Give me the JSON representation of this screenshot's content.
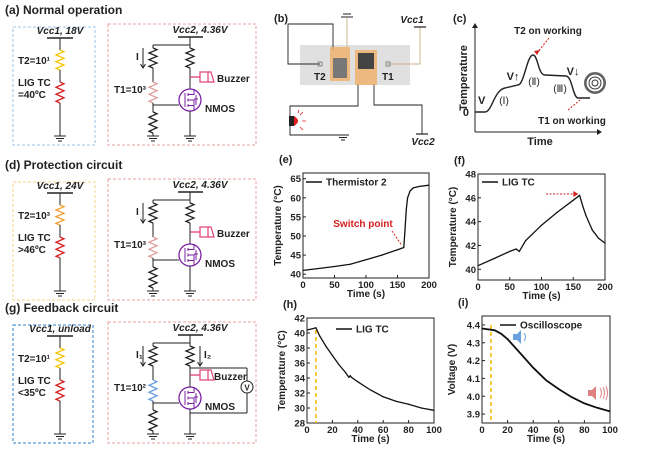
{
  "panels": {
    "a": {
      "title": "(a) Normal operation",
      "vcc1": "Vcc1, 18V",
      "t2": "T2=10¹",
      "lig1": "LIG TC",
      "lig2": "=40ºC",
      "vcc2": "Vcc2, 4.36V",
      "current": "I",
      "t1": "T1=10³",
      "buzzer": "Buzzer",
      "nmos": "NMOS",
      "left_box_color": "#9ec5ea",
      "t2_color": "#f5c400",
      "t1_color": "#e0a0a0"
    },
    "d": {
      "title": "(d) Protection circuit",
      "vcc1": "Vcc1, 24V",
      "t2": "T2=10³",
      "lig1": "LIG TC",
      "lig2": ">46ºC",
      "vcc2": "Vcc2, 4.36V",
      "current": "I",
      "t1": "T1=10³",
      "buzzer": "Buzzer",
      "nmos": "NMOS",
      "left_box_color": "#f4d58a",
      "t2_color": "#f0a030",
      "t1_color": "#e0a0a0"
    },
    "g": {
      "title": "(g) Feedback circuit",
      "vcc1": "Vcc1, unload",
      "t2": "T2=10¹",
      "lig1": "LIG TC",
      "lig2": "<35ºC",
      "vcc2": "Vcc2, 4.36V",
      "current": "I₁",
      "current2": "I₂",
      "t1": "T1=10²",
      "buzzer": "Buzzer",
      "nmos": "NMOS",
      "voltmeter": "V",
      "left_box_color": "#2e7fd6",
      "t2_color": "#f5c400",
      "t1_color": "#6aa0e0"
    },
    "b": {
      "title": "(b)",
      "vcc1": "Vcc1",
      "vcc2": "Vcc2",
      "t2": "T2",
      "t1": "T1"
    },
    "c": {
      "title": "(c)",
      "ylabel": "Temperature",
      "xlabel": "Time",
      "zero": "0",
      "v": "V",
      "v_up": "V↑",
      "v_down": "V↓",
      "stage1": "(Ⅰ)",
      "stage2": "(Ⅱ)",
      "stage3": "(Ⅲ)",
      "t2_note": "T2 on working",
      "t1_note": "T1 on working"
    }
  },
  "colors": {
    "right_box": "#e8a0a0",
    "lig_tc": "#d42020",
    "buzzer": "#e0407a",
    "nmos": "#7a1fa2",
    "annotation": "#d42020",
    "dashed_marker": "#f5b800",
    "speaker_quiet": "#6a9fe0",
    "speaker_loud": "#e08080"
  },
  "chart_data": [
    {
      "panel": "(e)",
      "type": "line",
      "xlabel": "Time (s)",
      "ylabel": "Temperature (°C)",
      "xlim": [
        0,
        200
      ],
      "ylim": [
        39,
        66.5
      ],
      "xticks": [
        0,
        50,
        100,
        150,
        200
      ],
      "yticks": [
        40,
        45,
        50,
        55,
        60,
        65
      ],
      "legend": "top-left",
      "series": [
        {
          "name": "Thermistor 2",
          "x": [
            0,
            25,
            50,
            75,
            100,
            125,
            150,
            160,
            162,
            164,
            166,
            170,
            175,
            185,
            200
          ],
          "y": [
            41,
            41.5,
            42,
            42.6,
            43.8,
            45,
            46.4,
            47,
            52,
            57,
            60,
            61.8,
            62.6,
            63,
            63.3
          ]
        }
      ],
      "annotations": [
        {
          "text": "Switch point",
          "x": 160,
          "y": 47
        }
      ]
    },
    {
      "panel": "(f)",
      "type": "line",
      "xlabel": "Time (s)",
      "ylabel": "Temperature (°C)",
      "xlim": [
        0,
        200
      ],
      "ylim": [
        39.1,
        48
      ],
      "xticks": [
        0,
        50,
        100,
        150,
        200
      ],
      "yticks": [
        40,
        42,
        44,
        46,
        48
      ],
      "legend": "top-left",
      "series": [
        {
          "name": "LIG TC",
          "x": [
            0,
            25,
            50,
            60,
            65,
            75,
            100,
            125,
            150,
            160,
            165,
            170,
            180,
            190,
            200
          ],
          "y": [
            40.3,
            40.9,
            41.5,
            41.7,
            41.5,
            42.4,
            43.7,
            44.8,
            45.8,
            46.2,
            45.3,
            44.5,
            43.3,
            42.6,
            42.2
          ]
        }
      ],
      "annotations": [
        {
          "text": "",
          "x": 158,
          "y": 46.2
        }
      ]
    },
    {
      "panel": "(h)",
      "type": "line",
      "xlabel": "Time (s)",
      "ylabel": "Temperature (°C)",
      "xlim": [
        0,
        100
      ],
      "ylim": [
        28,
        42
      ],
      "xticks": [
        0,
        20,
        40,
        60,
        80,
        100
      ],
      "yticks": [
        28,
        30,
        32,
        34,
        36,
        38,
        40,
        42
      ],
      "legend": "top-right",
      "marker_x": 7,
      "series": [
        {
          "name": "LIG TC",
          "x": [
            0,
            5,
            7,
            10,
            15,
            20,
            25,
            30,
            33,
            34,
            35,
            40,
            50,
            60,
            70,
            80,
            90,
            100
          ],
          "y": [
            40.4,
            40.6,
            40.7,
            39.6,
            38.2,
            37,
            35.8,
            34.8,
            34.1,
            34.3,
            34.1,
            33.5,
            32.4,
            31.5,
            30.9,
            30.5,
            30,
            29.7
          ]
        }
      ]
    },
    {
      "panel": "(i)",
      "type": "line",
      "xlabel": "Time (s)",
      "ylabel": "Voltage (V)",
      "xlim": [
        0,
        100
      ],
      "ylim": [
        3.85,
        4.45
      ],
      "xticks": [
        0,
        20,
        40,
        60,
        80,
        100
      ],
      "yticks": [
        3.9,
        4.0,
        4.1,
        4.2,
        4.3,
        4.4
      ],
      "legend": "top-right",
      "marker_x": 7,
      "series": [
        {
          "name": "Oscilloscope",
          "x": [
            0,
            10,
            15,
            20,
            30,
            40,
            50,
            60,
            70,
            80,
            90,
            100
          ],
          "y": [
            4.38,
            4.37,
            4.35,
            4.32,
            4.24,
            4.16,
            4.09,
            4.04,
            3.995,
            3.96,
            3.935,
            3.915
          ]
        }
      ]
    }
  ]
}
